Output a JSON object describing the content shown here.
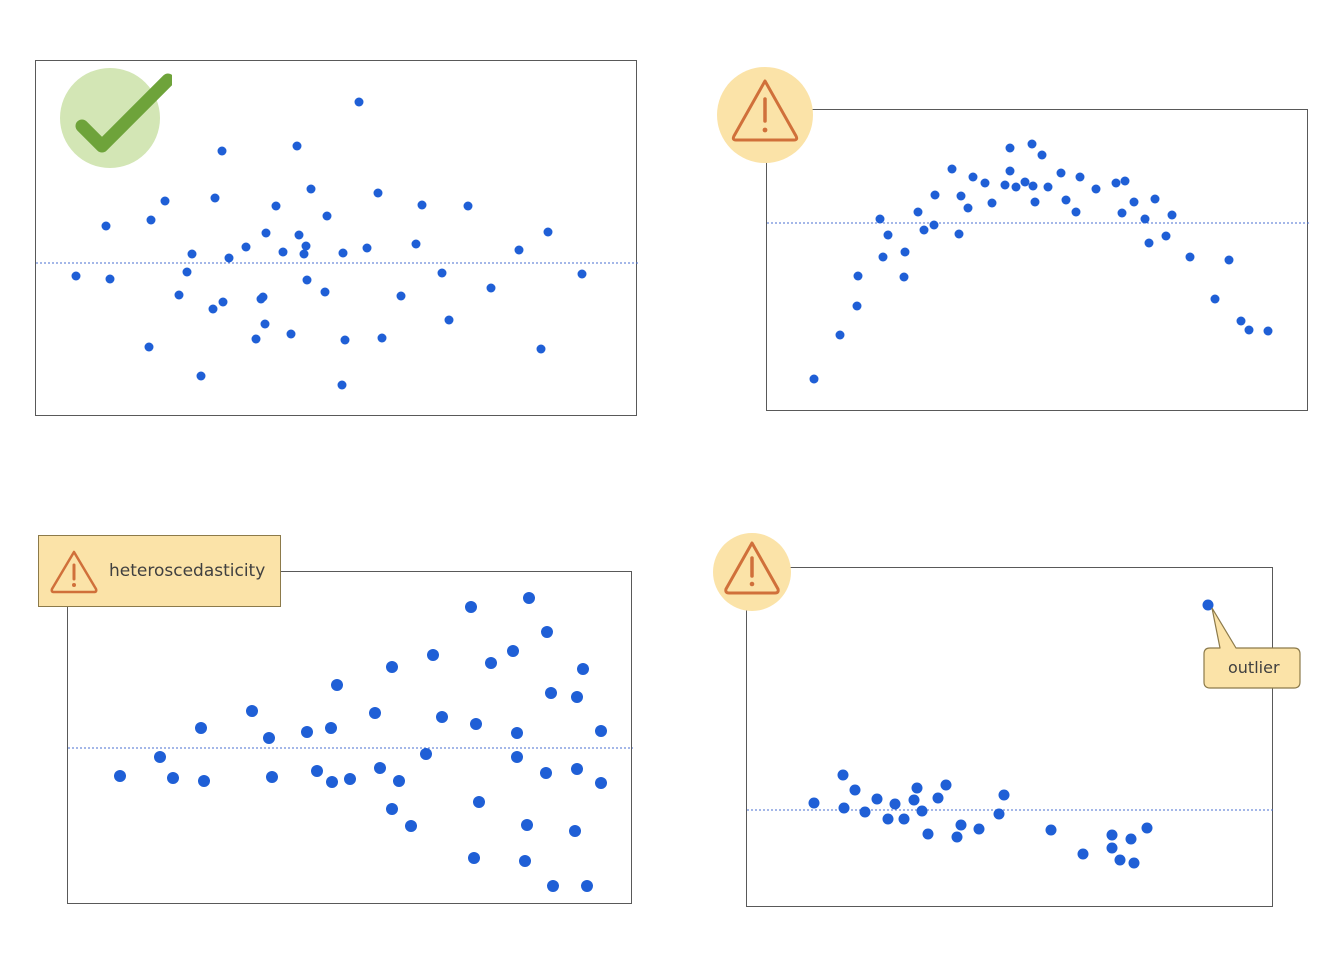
{
  "colors": {
    "point": "#1f5fd6",
    "reference_line": "#4a6fd1",
    "ok_badge_bg": "#d3e6b5",
    "ok_check": "#6ea33a",
    "warn_badge_bg": "#fbe3a8",
    "warn_icon": "#d0703a",
    "frame": "#595959"
  },
  "panels": [
    {
      "id": "random",
      "badge_icon": "checkmark-icon",
      "label": "",
      "points": [
        [
          75,
          275
        ],
        [
          109,
          278
        ],
        [
          105,
          225
        ],
        [
          148,
          346
        ],
        [
          150,
          219
        ],
        [
          164,
          200
        ],
        [
          178,
          294
        ],
        [
          186,
          271
        ],
        [
          191,
          253
        ],
        [
          200,
          375
        ],
        [
          212,
          308
        ],
        [
          214,
          197
        ],
        [
          221,
          150
        ],
        [
          222,
          301
        ],
        [
          228,
          257
        ],
        [
          245,
          246
        ],
        [
          255,
          338
        ],
        [
          260,
          298
        ],
        [
          262,
          296
        ],
        [
          264,
          323
        ],
        [
          265,
          232
        ],
        [
          275,
          205
        ],
        [
          282,
          251
        ],
        [
          290,
          333
        ],
        [
          296,
          145
        ],
        [
          298,
          234
        ],
        [
          303,
          253
        ],
        [
          305,
          245
        ],
        [
          306,
          279
        ],
        [
          310,
          188
        ],
        [
          324,
          291
        ],
        [
          326,
          215
        ],
        [
          342,
          252
        ],
        [
          344,
          339
        ],
        [
          341,
          384
        ],
        [
          358,
          101
        ],
        [
          366,
          247
        ],
        [
          377,
          192
        ],
        [
          381,
          337
        ],
        [
          400,
          295
        ],
        [
          415,
          243
        ],
        [
          421,
          204
        ],
        [
          441,
          272
        ],
        [
          448,
          319
        ],
        [
          467,
          205
        ],
        [
          490,
          287
        ],
        [
          518,
          249
        ],
        [
          540,
          348
        ],
        [
          547,
          231
        ],
        [
          581,
          273
        ]
      ]
    },
    {
      "id": "curved",
      "badge_icon": "warning-triangle-icon",
      "label": "",
      "points": [
        [
          813,
          378
        ],
        [
          839,
          334
        ],
        [
          856,
          305
        ],
        [
          857,
          275
        ],
        [
          879,
          218
        ],
        [
          882,
          256
        ],
        [
          887,
          234
        ],
        [
          903,
          276
        ],
        [
          904,
          251
        ],
        [
          917,
          211
        ],
        [
          923,
          229
        ],
        [
          933,
          224
        ],
        [
          934,
          194
        ],
        [
          951,
          168
        ],
        [
          958,
          233
        ],
        [
          960,
          195
        ],
        [
          967,
          207
        ],
        [
          972,
          176
        ],
        [
          984,
          182
        ],
        [
          991,
          202
        ],
        [
          1004,
          184
        ],
        [
          1009,
          147
        ],
        [
          1009,
          170
        ],
        [
          1015,
          186
        ],
        [
          1024,
          181
        ],
        [
          1031,
          143
        ],
        [
          1032,
          185
        ],
        [
          1034,
          201
        ],
        [
          1041,
          154
        ],
        [
          1047,
          186
        ],
        [
          1060,
          172
        ],
        [
          1065,
          199
        ],
        [
          1075,
          211
        ],
        [
          1079,
          176
        ],
        [
          1095,
          188
        ],
        [
          1115,
          182
        ],
        [
          1121,
          212
        ],
        [
          1124,
          180
        ],
        [
          1133,
          201
        ],
        [
          1144,
          218
        ],
        [
          1148,
          242
        ],
        [
          1154,
          198
        ],
        [
          1165,
          235
        ],
        [
          1171,
          214
        ],
        [
          1189,
          256
        ],
        [
          1214,
          298
        ],
        [
          1228,
          259
        ],
        [
          1240,
          320
        ],
        [
          1248,
          329
        ],
        [
          1267,
          330
        ]
      ]
    },
    {
      "id": "fanning",
      "badge_icon": "warning-triangle-icon",
      "label": "heteroscedasticity",
      "points": [
        [
          119,
          775
        ],
        [
          159,
          756
        ],
        [
          172,
          777
        ],
        [
          200,
          727
        ],
        [
          203,
          780
        ],
        [
          251,
          710
        ],
        [
          268,
          737
        ],
        [
          271,
          776
        ],
        [
          306,
          731
        ],
        [
          316,
          770
        ],
        [
          330,
          727
        ],
        [
          331,
          781
        ],
        [
          336,
          684
        ],
        [
          349,
          778
        ],
        [
          374,
          712
        ],
        [
          379,
          767
        ],
        [
          391,
          666
        ],
        [
          391,
          808
        ],
        [
          398,
          780
        ],
        [
          410,
          825
        ],
        [
          425,
          753
        ],
        [
          432,
          654
        ],
        [
          441,
          716
        ],
        [
          470,
          606
        ],
        [
          473,
          857
        ],
        [
          475,
          723
        ],
        [
          478,
          801
        ],
        [
          490,
          662
        ],
        [
          512,
          650
        ],
        [
          516,
          732
        ],
        [
          516,
          756
        ],
        [
          524,
          860
        ],
        [
          526,
          824
        ],
        [
          528,
          597
        ],
        [
          545,
          772
        ],
        [
          546,
          631
        ],
        [
          550,
          692
        ],
        [
          552,
          885
        ],
        [
          574,
          830
        ],
        [
          576,
          696
        ],
        [
          576,
          768
        ],
        [
          582,
          668
        ],
        [
          586,
          885
        ],
        [
          600,
          730
        ],
        [
          600,
          782
        ]
      ]
    },
    {
      "id": "outlier",
      "badge_icon": "warning-triangle-icon",
      "label": "outlier",
      "points": [
        [
          813,
          802
        ],
        [
          842,
          774
        ],
        [
          843,
          807
        ],
        [
          854,
          789
        ],
        [
          864,
          811
        ],
        [
          876,
          798
        ],
        [
          887,
          818
        ],
        [
          894,
          803
        ],
        [
          903,
          818
        ],
        [
          913,
          799
        ],
        [
          916,
          787
        ],
        [
          921,
          810
        ],
        [
          927,
          833
        ],
        [
          937,
          797
        ],
        [
          945,
          784
        ],
        [
          956,
          836
        ],
        [
          960,
          824
        ],
        [
          978,
          828
        ],
        [
          998,
          813
        ],
        [
          1003,
          794
        ],
        [
          1050,
          829
        ],
        [
          1082,
          853
        ],
        [
          1111,
          834
        ],
        [
          1111,
          847
        ],
        [
          1119,
          859
        ],
        [
          1130,
          838
        ],
        [
          1133,
          862
        ],
        [
          1146,
          827
        ],
        [
          1207,
          604
        ]
      ]
    }
  ]
}
